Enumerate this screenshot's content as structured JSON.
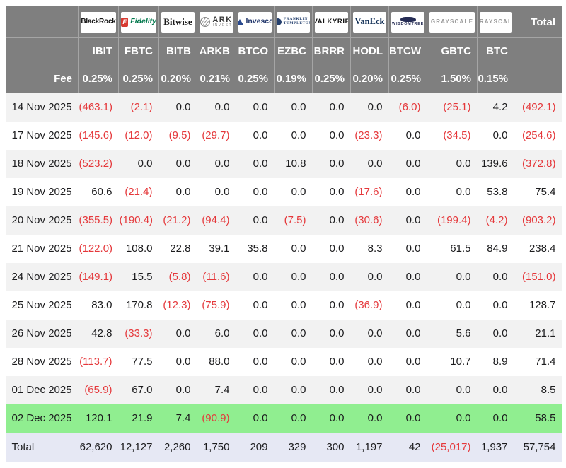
{
  "chart_data": {
    "type": "table",
    "fee_label": "Fee",
    "total_column_label": "Total",
    "total_row_label": "Total",
    "units": "",
    "providers": [
      {
        "name": "BlackRock",
        "logo_style": "blackrock",
        "ticker": "IBIT",
        "fee": "0.25%"
      },
      {
        "name": "Fidelity",
        "logo_style": "fidelity",
        "logo_icon_text": "F",
        "ticker": "FBTC",
        "fee": "0.25%"
      },
      {
        "name": "Bitwise",
        "logo_style": "bitwise",
        "ticker": "BITB",
        "fee": "0.20%"
      },
      {
        "name": "ARK",
        "logo_sub": "INVEST",
        "logo_style": "ark",
        "ticker": "ARKB",
        "fee": "0.21%"
      },
      {
        "name": "Invesco",
        "logo_style": "invesco",
        "ticker": "BTCO",
        "fee": "0.25%"
      },
      {
        "name": "FRANKLIN",
        "logo_sub": "TEMPLETON",
        "logo_style": "franklin",
        "ticker": "EZBC",
        "fee": "0.19%"
      },
      {
        "name": "VALKYRIE",
        "logo_style": "valkyrie",
        "ticker": "BRRR",
        "fee": "0.25%"
      },
      {
        "name": "VanEck",
        "logo_style": "vaneck",
        "ticker": "HODL",
        "fee": "0.20%"
      },
      {
        "name": "WISDOMTREE",
        "logo_style": "wisdomtree",
        "ticker": "BTCW",
        "fee": "0.25%"
      },
      {
        "name": "GRAYSCALE",
        "logo_style": "grayscale",
        "ticker": "GBTC",
        "fee": "1.50%"
      },
      {
        "name": "GRAYSCALE",
        "logo_style": "grayscale",
        "ticker": "BTC",
        "fee": "0.15%"
      }
    ],
    "rows": [
      {
        "date": "14 Nov 2025",
        "values": [
          "(463.1)",
          "(2.1)",
          "0.0",
          "0.0",
          "0.0",
          "0.0",
          "0.0",
          "0.0",
          "(6.0)",
          "(25.1)",
          "4.2"
        ],
        "total": "(492.1)",
        "highlight": false
      },
      {
        "date": "17 Nov 2025",
        "values": [
          "(145.6)",
          "(12.0)",
          "(9.5)",
          "(29.7)",
          "0.0",
          "0.0",
          "0.0",
          "(23.3)",
          "0.0",
          "(34.5)",
          "0.0"
        ],
        "total": "(254.6)",
        "highlight": false
      },
      {
        "date": "18 Nov 2025",
        "values": [
          "(523.2)",
          "0.0",
          "0.0",
          "0.0",
          "0.0",
          "10.8",
          "0.0",
          "0.0",
          "0.0",
          "0.0",
          "139.6"
        ],
        "total": "(372.8)",
        "highlight": false
      },
      {
        "date": "19 Nov 2025",
        "values": [
          "60.6",
          "(21.4)",
          "0.0",
          "0.0",
          "0.0",
          "0.0",
          "0.0",
          "(17.6)",
          "0.0",
          "0.0",
          "53.8"
        ],
        "total": "75.4",
        "highlight": false
      },
      {
        "date": "20 Nov 2025",
        "values": [
          "(355.5)",
          "(190.4)",
          "(21.2)",
          "(94.4)",
          "0.0",
          "(7.5)",
          "0.0",
          "(30.6)",
          "0.0",
          "(199.4)",
          "(4.2)"
        ],
        "total": "(903.2)",
        "highlight": false
      },
      {
        "date": "21 Nov 2025",
        "values": [
          "(122.0)",
          "108.0",
          "22.8",
          "39.1",
          "35.8",
          "0.0",
          "0.0",
          "8.3",
          "0.0",
          "61.5",
          "84.9"
        ],
        "total": "238.4",
        "highlight": false
      },
      {
        "date": "24 Nov 2025",
        "values": [
          "(149.1)",
          "15.5",
          "(5.8)",
          "(11.6)",
          "0.0",
          "0.0",
          "0.0",
          "0.0",
          "0.0",
          "0.0",
          "0.0"
        ],
        "total": "(151.0)",
        "highlight": false
      },
      {
        "date": "25 Nov 2025",
        "values": [
          "83.0",
          "170.8",
          "(12.3)",
          "(75.9)",
          "0.0",
          "0.0",
          "0.0",
          "(36.9)",
          "0.0",
          "0.0",
          "0.0"
        ],
        "total": "128.7",
        "highlight": false
      },
      {
        "date": "26 Nov 2025",
        "values": [
          "42.8",
          "(33.3)",
          "0.0",
          "6.0",
          "0.0",
          "0.0",
          "0.0",
          "0.0",
          "0.0",
          "5.6",
          "0.0"
        ],
        "total": "21.1",
        "highlight": false
      },
      {
        "date": "28 Nov 2025",
        "values": [
          "(113.7)",
          "77.5",
          "0.0",
          "88.0",
          "0.0",
          "0.0",
          "0.0",
          "0.0",
          "0.0",
          "10.7",
          "8.9"
        ],
        "total": "71.4",
        "highlight": false
      },
      {
        "date": "01 Dec 2025",
        "values": [
          "(65.9)",
          "67.0",
          "0.0",
          "7.4",
          "0.0",
          "0.0",
          "0.0",
          "0.0",
          "0.0",
          "0.0",
          "0.0"
        ],
        "total": "8.5",
        "highlight": false
      },
      {
        "date": "02 Dec 2025",
        "values": [
          "120.1",
          "21.9",
          "7.4",
          "(90.9)",
          "0.0",
          "0.0",
          "0.0",
          "0.0",
          "0.0",
          "0.0",
          "0.0"
        ],
        "total": "58.5",
        "highlight": true
      }
    ],
    "totals": {
      "values": [
        "62,620",
        "12,127",
        "2,260",
        "1,750",
        "209",
        "329",
        "300",
        "1,197",
        "42",
        "(25,017)",
        "1,937"
      ],
      "total": "57,754"
    }
  },
  "colors": {
    "header_bg": "#7f7f7f",
    "header_border": "#a5a5a5",
    "stripe": "#f2f2f2",
    "negative": "#e5383b",
    "highlight_row": "#90ee90",
    "total_row": "#e6e8f4"
  }
}
